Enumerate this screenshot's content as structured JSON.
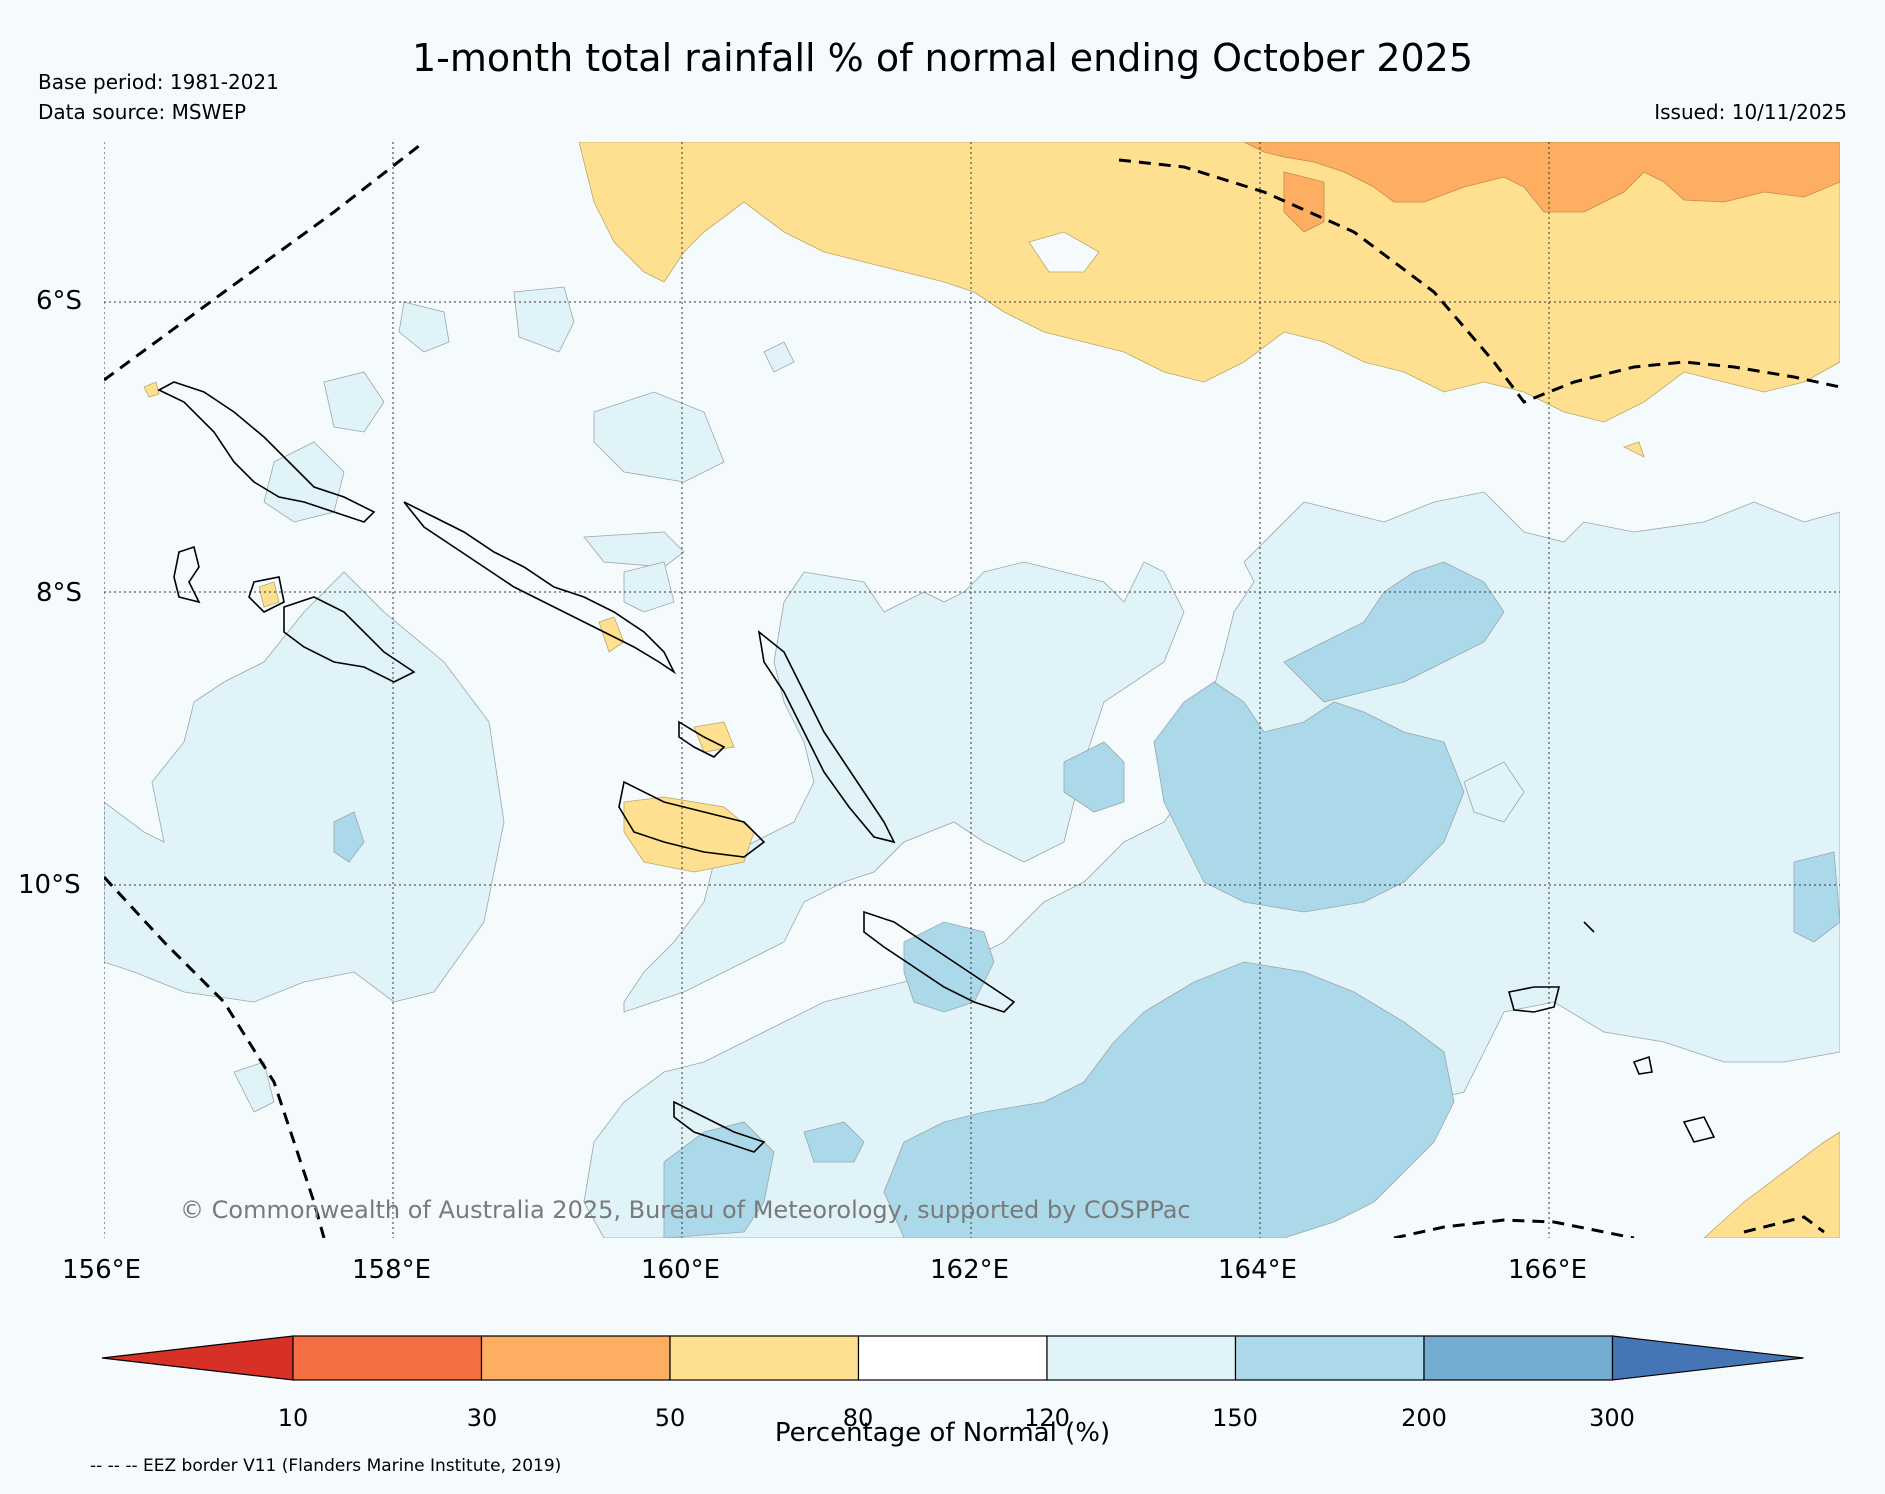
{
  "title": "1-month total rainfall % of normal ending October 2025",
  "base_period": "Base period: 1981-2021",
  "data_source": "Data source: MSWEP",
  "issued": "Issued: 10/11/2025",
  "latitude_labels": [
    "6°S",
    "8°S",
    "10°S"
  ],
  "longitude_labels": [
    "156°E",
    "158°E",
    "160°E",
    "162°E",
    "164°E",
    "166°E"
  ],
  "copyright": "© Commonwealth of Australia 2025, Bureau of Meteorology, supported by COSPPac",
  "colorbar": {
    "title": "Percentage of Normal (%)",
    "tick_labels": [
      "10",
      "30",
      "50",
      "80",
      "120",
      "150",
      "200",
      "300"
    ],
    "colors": [
      "#d73027",
      "#f46d43",
      "#fdae61",
      "#fee090",
      "#ffffff",
      "#e0f3f8",
      "#abd9e9",
      "#74add1",
      "#4575b4"
    ]
  },
  "footnote": "-- -- -- EEZ border V11 (Flanders Marine Institute, 2019)"
}
